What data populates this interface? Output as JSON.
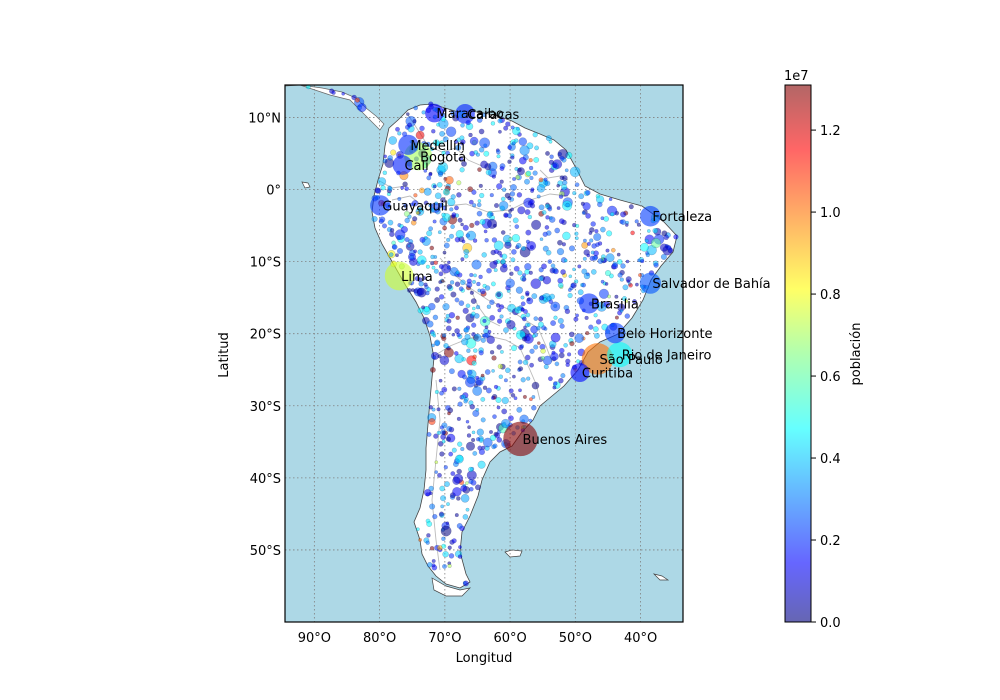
{
  "map": {
    "xlabel": "Longitud",
    "ylabel": "Latitud",
    "lon_ticks": [
      {
        "value": -90,
        "label": "90°O"
      },
      {
        "value": -80,
        "label": "80°O"
      },
      {
        "value": -70,
        "label": "70°O"
      },
      {
        "value": -60,
        "label": "60°O"
      },
      {
        "value": -50,
        "label": "50°O"
      },
      {
        "value": -40,
        "label": "40°O"
      }
    ],
    "lat_ticks": [
      {
        "value": 10,
        "label": "10°N"
      },
      {
        "value": 0,
        "label": "0°"
      },
      {
        "value": -10,
        "label": "10°S"
      },
      {
        "value": -20,
        "label": "20°S"
      },
      {
        "value": -30,
        "label": "30°S"
      },
      {
        "value": -40,
        "label": "40°S"
      },
      {
        "value": -50,
        "label": "50°S"
      }
    ],
    "lon_range": [
      -94.5,
      -33.5
    ],
    "lat_range": [
      -60,
      14.5
    ],
    "ocean_color": "#add8e6",
    "land_color": "#ffffff",
    "grid": true
  },
  "colorbar": {
    "label": "población",
    "exponent_label": "1e7",
    "ticks": [
      {
        "value": 0.0,
        "label": "0.0"
      },
      {
        "value": 0.2,
        "label": "0.2"
      },
      {
        "value": 0.4,
        "label": "0.4"
      },
      {
        "value": 0.6,
        "label": "0.6"
      },
      {
        "value": 0.8,
        "label": "0.8"
      },
      {
        "value": 1.0,
        "label": "1.0"
      },
      {
        "value": 1.2,
        "label": "1.2"
      }
    ],
    "range": [
      0,
      1.31
    ],
    "colormap": "jet"
  },
  "chart_data": {
    "type": "scatter",
    "xlabel": "Longitud",
    "ylabel": "Latitud",
    "colorbar_label": "población",
    "cities": [
      {
        "name": "Buenos Aires",
        "lon": -58.4,
        "lat": -34.6,
        "pop": 13.0
      },
      {
        "name": "São Paulo",
        "lon": -46.6,
        "lat": -23.5,
        "pop": 10.0
      },
      {
        "name": "Lima",
        "lon": -77.0,
        "lat": -12.0,
        "pop": 7.6
      },
      {
        "name": "Bogotá",
        "lon": -74.1,
        "lat": 4.6,
        "pop": 7.0
      },
      {
        "name": "Rio de Janeiro",
        "lon": -43.2,
        "lat": -22.9,
        "pop": 5.0
      },
      {
        "name": "Salvador de Bahía",
        "lon": -38.5,
        "lat": -13.0,
        "pop": 2.7
      },
      {
        "name": "Fortaleza",
        "lon": -38.5,
        "lat": -3.7,
        "pop": 2.4
      },
      {
        "name": "Belo Horizonte",
        "lon": -43.9,
        "lat": -19.9,
        "pop": 2.4
      },
      {
        "name": "Brasilia",
        "lon": -47.9,
        "lat": -15.8,
        "pop": 2.2
      },
      {
        "name": "Curitiba",
        "lon": -49.3,
        "lat": -25.4,
        "pop": 1.7
      },
      {
        "name": "Caracas",
        "lon": -66.9,
        "lat": 10.5,
        "pop": 2.0
      },
      {
        "name": "Guayaquil",
        "lon": -79.9,
        "lat": -2.2,
        "pop": 2.3
      },
      {
        "name": "Medellín",
        "lon": -75.6,
        "lat": 6.2,
        "pop": 2.2
      },
      {
        "name": "Cali",
        "lon": -76.5,
        "lat": 3.4,
        "pop": 2.0
      },
      {
        "name": "Maracaibo",
        "lon": -71.6,
        "lat": 10.6,
        "pop": 1.6
      }
    ]
  }
}
